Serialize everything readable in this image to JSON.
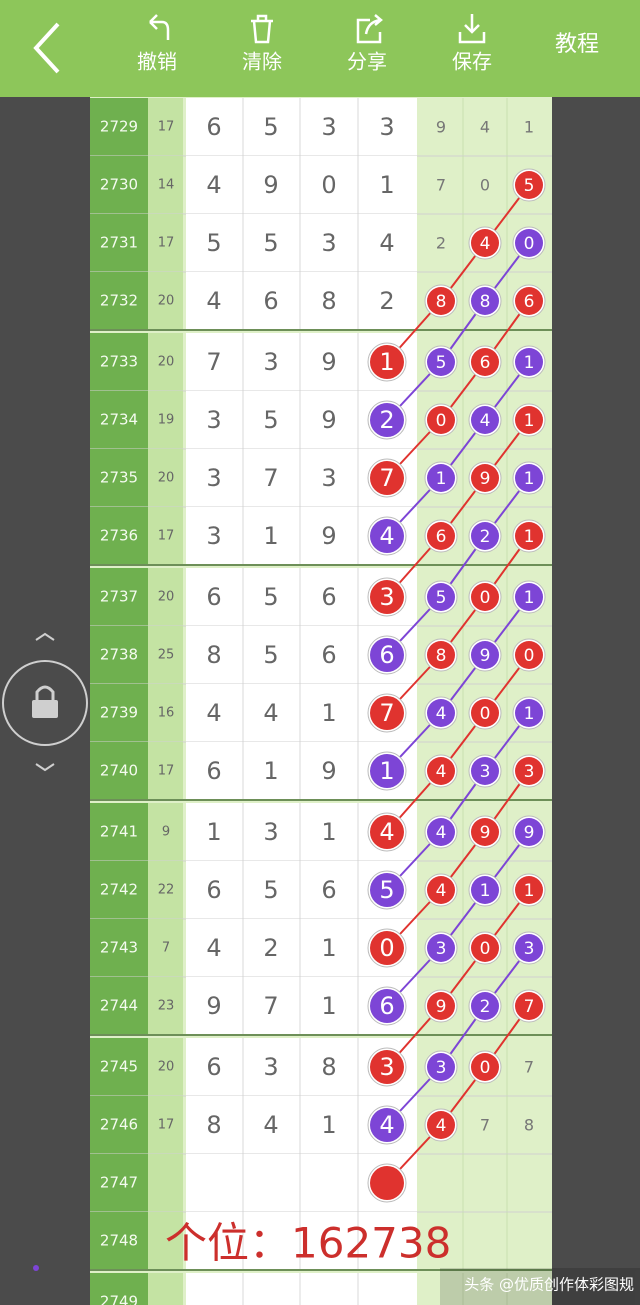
{
  "toolbar": {
    "buttons": [
      "撤销",
      "清除",
      "分享",
      "保存"
    ],
    "tutorial": "教程"
  },
  "colors": {
    "red": "#e0332f",
    "purple": "#7d45d6"
  },
  "rows": [
    {
      "issue": "2729",
      "sum": "17",
      "digits": [
        "6",
        "5",
        "3",
        "3"
      ],
      "tail": [
        "9",
        "4",
        "1"
      ],
      "circles": [
        null,
        null,
        null,
        null
      ]
    },
    {
      "issue": "2730",
      "sum": "14",
      "digits": [
        "4",
        "9",
        "0",
        "1"
      ],
      "tail": [
        "7",
        "0",
        "5"
      ],
      "circles": [
        null,
        null,
        null,
        "red"
      ]
    },
    {
      "issue": "2731",
      "sum": "17",
      "digits": [
        "5",
        "5",
        "3",
        "4"
      ],
      "tail": [
        "2",
        "4",
        "0"
      ],
      "circles": [
        null,
        null,
        "red",
        "purple"
      ]
    },
    {
      "issue": "2732",
      "sum": "20",
      "digits": [
        "4",
        "6",
        "8",
        "2"
      ],
      "tail": [
        "8",
        "8",
        "6"
      ],
      "circles": [
        null,
        "red",
        "purple",
        "red"
      ]
    },
    {
      "issue": "2733",
      "sum": "20",
      "digits": [
        "7",
        "3",
        "9",
        "1"
      ],
      "tail": [
        "5",
        "6",
        "1"
      ],
      "circles": [
        "red",
        "purple",
        "red",
        "purple"
      ]
    },
    {
      "issue": "2734",
      "sum": "19",
      "digits": [
        "3",
        "5",
        "9",
        "2"
      ],
      "tail": [
        "0",
        "4",
        "1"
      ],
      "circles": [
        "purple",
        "red",
        "purple",
        "red"
      ]
    },
    {
      "issue": "2735",
      "sum": "20",
      "digits": [
        "3",
        "7",
        "3",
        "7"
      ],
      "tail": [
        "1",
        "9",
        "1"
      ],
      "circles": [
        "red",
        "purple",
        "red",
        "purple"
      ]
    },
    {
      "issue": "2736",
      "sum": "17",
      "digits": [
        "3",
        "1",
        "9",
        "4"
      ],
      "tail": [
        "6",
        "2",
        "1"
      ],
      "circles": [
        "purple",
        "red",
        "purple",
        "red"
      ]
    },
    {
      "issue": "2737",
      "sum": "20",
      "digits": [
        "6",
        "5",
        "6",
        "3"
      ],
      "tail": [
        "5",
        "0",
        "1"
      ],
      "circles": [
        "red",
        "purple",
        "red",
        "purple"
      ]
    },
    {
      "issue": "2738",
      "sum": "25",
      "digits": [
        "8",
        "5",
        "6",
        "6"
      ],
      "tail": [
        "8",
        "9",
        "0"
      ],
      "circles": [
        "purple",
        "red",
        "purple",
        "red"
      ]
    },
    {
      "issue": "2739",
      "sum": "16",
      "digits": [
        "4",
        "4",
        "1",
        "7"
      ],
      "tail": [
        "4",
        "0",
        "1"
      ],
      "circles": [
        "red",
        "purple",
        "red",
        "purple"
      ]
    },
    {
      "issue": "2740",
      "sum": "17",
      "digits": [
        "6",
        "1",
        "9",
        "1"
      ],
      "tail": [
        "4",
        "3",
        "3"
      ],
      "circles": [
        "purple",
        "red",
        "purple",
        "red"
      ]
    },
    {
      "issue": "2741",
      "sum": "9",
      "digits": [
        "1",
        "3",
        "1",
        "4"
      ],
      "tail": [
        "4",
        "9",
        "9"
      ],
      "circles": [
        "red",
        "purple",
        "red",
        "purple"
      ]
    },
    {
      "issue": "2742",
      "sum": "22",
      "digits": [
        "6",
        "5",
        "6",
        "5"
      ],
      "tail": [
        "4",
        "1",
        "1"
      ],
      "circles": [
        "purple",
        "red",
        "purple",
        "red"
      ]
    },
    {
      "issue": "2743",
      "sum": "7",
      "digits": [
        "4",
        "2",
        "1",
        "0"
      ],
      "tail": [
        "3",
        "0",
        "3"
      ],
      "circles": [
        "red",
        "purple",
        "red",
        "purple"
      ]
    },
    {
      "issue": "2744",
      "sum": "23",
      "digits": [
        "9",
        "7",
        "1",
        "6"
      ],
      "tail": [
        "9",
        "2",
        "7"
      ],
      "circles": [
        "purple",
        "red",
        "purple",
        "red"
      ]
    },
    {
      "issue": "2745",
      "sum": "20",
      "digits": [
        "6",
        "3",
        "8",
        "3"
      ],
      "tail": [
        "3",
        "0",
        "7"
      ],
      "circles": [
        "red",
        "purple",
        "red",
        null
      ]
    },
    {
      "issue": "2746",
      "sum": "17",
      "digits": [
        "8",
        "4",
        "1",
        "4"
      ],
      "tail": [
        "4",
        "7",
        "8"
      ],
      "circles": [
        "purple",
        "red",
        null,
        null
      ]
    },
    {
      "issue": "2747",
      "sum": null,
      "digits": [
        null,
        null,
        null,
        null
      ],
      "tail": [
        null,
        null,
        null
      ],
      "circles": [
        "red",
        null,
        null,
        null
      ]
    },
    {
      "issue": "2748",
      "sum": null,
      "digits": [
        null,
        null,
        null,
        null
      ],
      "tail": [
        null,
        null,
        null
      ],
      "circles": [
        null,
        null,
        null,
        null
      ]
    },
    {
      "issue": "2749",
      "sum": null,
      "digits": [
        null,
        null,
        null,
        null
      ],
      "tail": [
        null,
        null,
        null
      ],
      "circles": [
        null,
        null,
        null,
        null
      ]
    }
  ],
  "overlay": "个位：162738",
  "watermark": "头条 @优质创作体彩图规"
}
